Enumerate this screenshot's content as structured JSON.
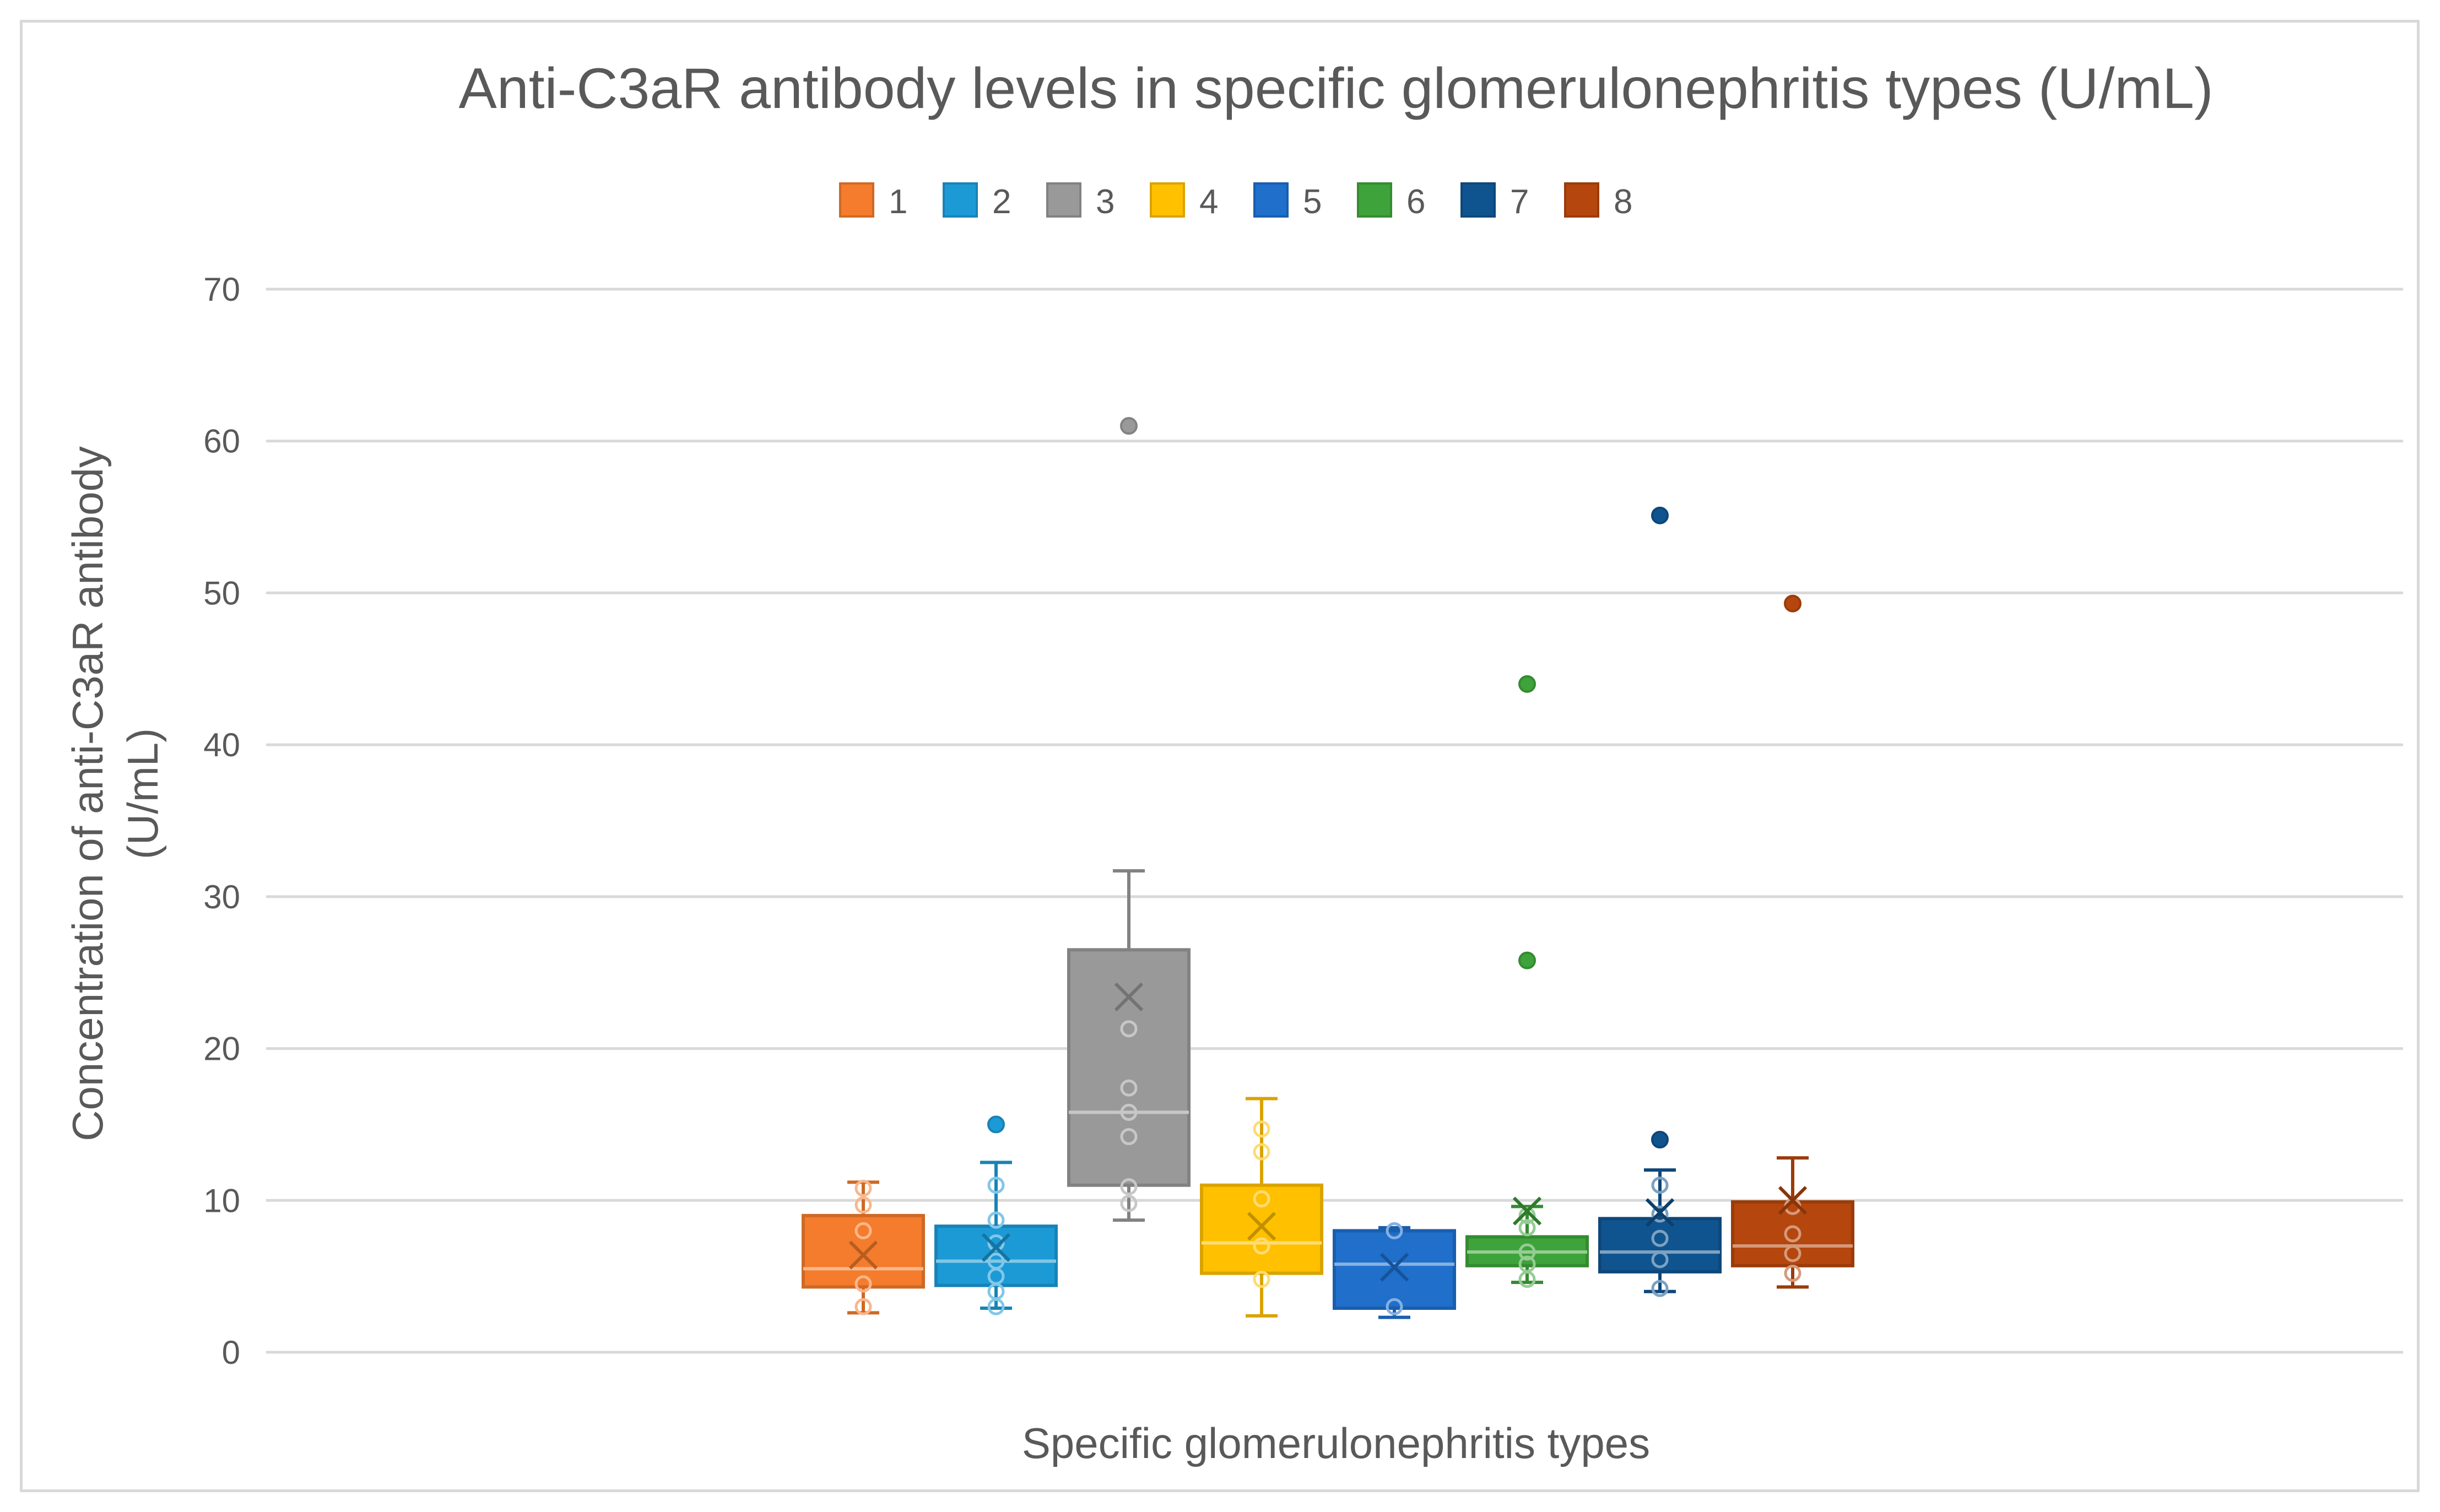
{
  "chart_data": {
    "type": "box",
    "title": "Anti-C3aR antibody levels in specific glomerulonephritis types (U/mL)",
    "xlabel": "Specific glomerulonephritis types",
    "ylabel_lines": [
      "Concentration of anti-C3aR antibody",
      "(U/mL)"
    ],
    "ylim": [
      0,
      70
    ],
    "yticks": [
      0,
      10,
      20,
      30,
      40,
      50,
      60,
      70
    ],
    "grid": true,
    "legend_position": "top",
    "series": [
      {
        "name": "1",
        "color": "#F47C2C",
        "min": 2.6,
        "q1": 4.3,
        "median": 5.5,
        "q3": 9.0,
        "max": 11.2,
        "mean": 6.4,
        "points": [
          3.0,
          4.5,
          8.0,
          9.7,
          10.8
        ],
        "outliers": []
      },
      {
        "name": "2",
        "color": "#1C9AD6",
        "min": 2.9,
        "q1": 4.4,
        "median": 6.0,
        "q3": 8.3,
        "max": 12.5,
        "mean": 6.9,
        "points": [
          3.0,
          4.0,
          5.0,
          6.0,
          7.2,
          8.7,
          11.0
        ],
        "outliers": [
          15.0
        ]
      },
      {
        "name": "3",
        "color": "#999999",
        "min": 8.7,
        "q1": 11.0,
        "median": 15.8,
        "q3": 26.5,
        "max": 31.7,
        "mean": 23.4,
        "points": [
          9.8,
          10.9,
          14.2,
          15.8,
          17.4,
          21.3
        ],
        "outliers": [
          61.0
        ]
      },
      {
        "name": "4",
        "color": "#FFC000",
        "min": 2.4,
        "q1": 5.2,
        "median": 7.2,
        "q3": 11.0,
        "max": 16.7,
        "mean": 8.3,
        "points": [
          4.8,
          7.0,
          10.1,
          13.2,
          14.7
        ],
        "outliers": []
      },
      {
        "name": "5",
        "color": "#1F6FCB",
        "min": 2.3,
        "q1": 2.9,
        "median": 5.8,
        "q3": 8.0,
        "max": 8.2,
        "mean": 5.6,
        "points": [
          3.0,
          8.0
        ],
        "outliers": []
      },
      {
        "name": "6",
        "color": "#3EA33A",
        "min": 4.6,
        "q1": 5.7,
        "median": 6.6,
        "q3": 7.6,
        "max": 9.6,
        "mean": 9.3,
        "points": [
          4.8,
          5.8,
          6.6,
          8.2,
          9.0
        ],
        "outliers": [
          25.8,
          44.0
        ]
      },
      {
        "name": "7",
        "color": "#10548F",
        "min": 4.0,
        "q1": 5.3,
        "median": 6.6,
        "q3": 8.8,
        "max": 12.0,
        "mean": 9.2,
        "points": [
          4.2,
          6.1,
          7.5,
          9.1,
          11.0
        ],
        "outliers": [
          14.0,
          55.1
        ]
      },
      {
        "name": "8",
        "color": "#B5460D",
        "min": 4.3,
        "q1": 5.7,
        "median": 7.0,
        "q3": 9.9,
        "max": 12.8,
        "mean": 10.0,
        "points": [
          5.2,
          6.5,
          7.8,
          9.6
        ],
        "outliers": [
          49.3
        ]
      }
    ]
  }
}
